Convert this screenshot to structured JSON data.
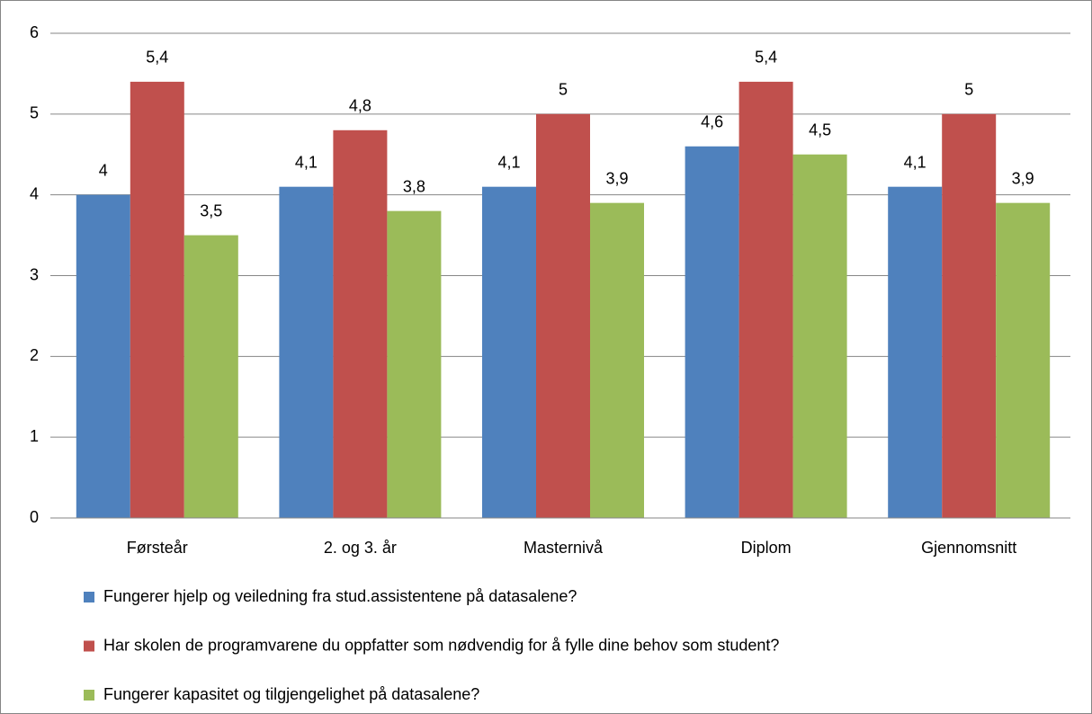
{
  "chart_data": {
    "type": "bar",
    "categories": [
      "Førsteår",
      "2. og 3. år",
      "Masternivå",
      "Diplom",
      "Gjennomsnitt"
    ],
    "series": [
      {
        "name": "Fungerer hjelp og veiledning fra stud.assistentene på datasalene?",
        "color": "#4f81bd",
        "values": [
          4,
          4.1,
          4.1,
          4.6,
          4.1
        ],
        "value_labels": [
          "4",
          "4,1",
          "4,1",
          "4,6",
          "4,1"
        ]
      },
      {
        "name": "Har skolen de programvarene du oppfatter som nødvendig for å fylle dine behov som student?",
        "color": "#c0504d",
        "values": [
          5.4,
          4.8,
          5,
          5.4,
          5
        ],
        "value_labels": [
          "5,4",
          "4,8",
          "5",
          "5,4",
          "5"
        ]
      },
      {
        "name": "Fungerer kapasitet og tilgjengelighet på datasalene?",
        "color": "#9bbb59",
        "values": [
          3.5,
          3.8,
          3.9,
          4.5,
          3.9
        ],
        "value_labels": [
          "3,5",
          "3,8",
          "3,9",
          "4,5",
          "3,9"
        ]
      }
    ],
    "ylim": [
      0,
      6
    ],
    "yticks": [
      0,
      1,
      2,
      3,
      4,
      5,
      6
    ],
    "grid": true,
    "legend": "bottom"
  }
}
